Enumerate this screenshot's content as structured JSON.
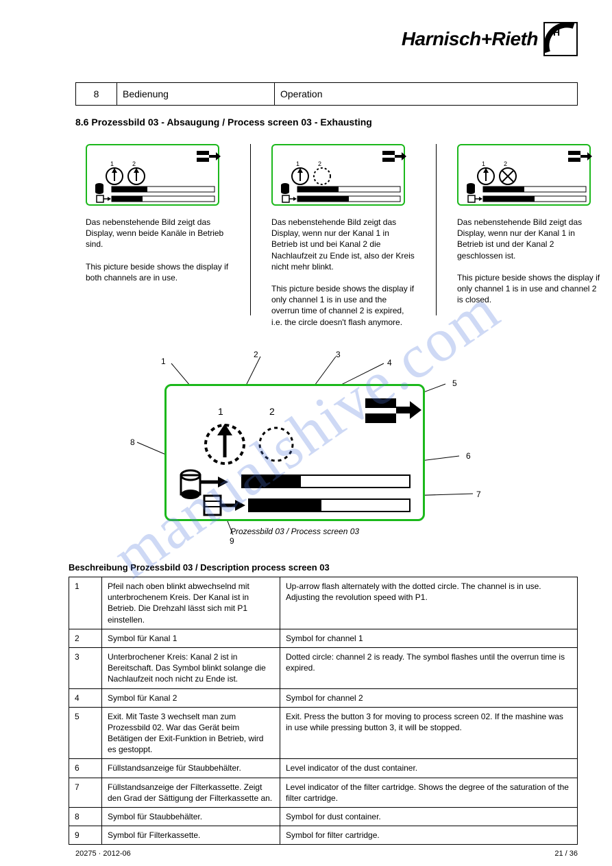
{
  "logo": {
    "text": "Harnisch+Rieth"
  },
  "chapter": {
    "num": "8",
    "left": "Bedienung",
    "right": "Operation"
  },
  "section_title": "8.6  Prozessbild 03 - Absaugung / Process screen 03 - Exhausting",
  "panels": [
    {
      "caption": "Das nebenstehende Bild zeigt das Display, wenn beide Kanäle in Betrieb sind.",
      "caption2": "This picture beside shows the display if both channels are in use.",
      "arrow2": true,
      "fill1": 0.35,
      "fill2": 0.3
    },
    {
      "caption": "Das nebenstehende Bild zeigt das Display, wenn nur der Kanal 1 in Betrieb ist und bei Kanal 2 die Nachlaufzeit zu Ende ist, also der Kreis nicht mehr blinkt.",
      "caption2": "This picture beside shows the display if only channel 1 is in use and the overrun time of channel 2 is expired, i.e. the circle doesn't flash anymore.",
      "arrow2": false,
      "fill1": 0.4,
      "fill2": 0.5
    },
    {
      "caption": "Das nebenstehende Bild zeigt das Display, wenn nur der Kanal 1 in Betrieb ist und der Kanal 2 geschlossen ist.",
      "caption2": "This picture beside shows the display if only channel 1 is in use and channel 2 is closed.",
      "arrow2": "cross",
      "fill1": 0.4,
      "fill2": 0.5
    }
  ],
  "big": {
    "subcaption": "Prozessbild 03 / Process screen 03",
    "fill1": 0.35,
    "fill2": 0.45
  },
  "annotations": {
    "1": "1",
    "2": "2",
    "3": "3",
    "4": "4",
    "5": "5",
    "6": "6",
    "7": "7",
    "8": "8",
    "9": "9"
  },
  "table_title": "Beschreibung Prozessbild 03 / Description process screen 03",
  "rows": [
    {
      "n": "1",
      "l": "Pfeil nach oben blinkt abwechselnd mit unterbrochenem Kreis. Der Kanal ist in Betrieb. Die Drehzahl lässt sich mit P1 einstellen.",
      "r": "Up-arrow flash alternately with the dotted circle. The channel is in use. Adjusting the revolution speed with P1."
    },
    {
      "n": "2",
      "l": "Symbol für Kanal 1",
      "r": "Symbol for channel 1"
    },
    {
      "n": "3",
      "l": "Unterbrochener Kreis: Kanal 2 ist in Bereitschaft. Das Symbol blinkt solange die Nachlaufzeit noch nicht zu Ende ist.",
      "r": "Dotted circle: channel 2 is ready. The symbol flashes until the overrun time is expired."
    },
    {
      "n": "4",
      "l": "Symbol für Kanal 2",
      "r": "Symbol for channel 2"
    },
    {
      "n": "5",
      "l": "Exit. Mit Taste 3 wechselt man zum Prozessbild 02. War das Gerät beim Betätigen der Exit-Funktion in Betrieb, wird es gestoppt.",
      "r": "Exit. Press the button 3 for moving to process screen 02. If the mashine was in use while pressing button 3, it will be stopped."
    },
    {
      "n": "6",
      "l": "Füllstandsanzeige für Staubbehälter.",
      "r": "Level indicator of the dust container."
    },
    {
      "n": "7",
      "l": "Füllstandsanzeige der Filterkassette. Zeigt den Grad der Sättigung der Filterkassette an.",
      "r": "Level indicator of the filter cartridge. Shows the degree of the saturation of the filter cartridge."
    },
    {
      "n": "8",
      "l": "Symbol für Staubbehälter.",
      "r": "Symbol for dust container."
    },
    {
      "n": "9",
      "l": "Symbol für Filterkassette.",
      "r": "Symbol for filter cartridge."
    }
  ],
  "footer": {
    "left": "20275 · 2012-06",
    "right": "21 / 36"
  },
  "watermark": "manualshive.com",
  "colors": {
    "green": "#1bb81b",
    "wm": "rgba(80,120,220,0.28)"
  }
}
